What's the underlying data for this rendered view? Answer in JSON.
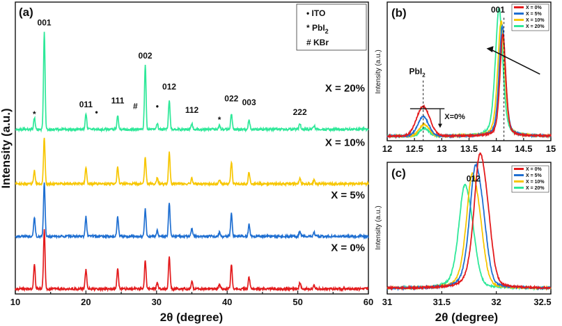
{
  "colors": {
    "x0": "#e31a1c",
    "x5": "#1f6fd1",
    "x10": "#f7c600",
    "x20": "#2ee899"
  },
  "chart_data": [
    {
      "panel": "(a)",
      "type": "line",
      "xlabel": "2θ (degree)",
      "ylabel": "Intensity (a.u.)",
      "xlim": [
        10,
        60
      ],
      "xticks": [
        "10",
        "20",
        "30",
        "40",
        "50",
        "60"
      ],
      "series": [
        {
          "name": "X = 20%",
          "key": "x20",
          "offset": 0.84
        },
        {
          "name": "X = 10%",
          "key": "x10",
          "offset": 0.56
        },
        {
          "name": "X = 5%",
          "key": "x5",
          "offset": 0.29
        },
        {
          "name": "X = 0%",
          "key": "x0",
          "offset": 0.02
        }
      ],
      "peaks": [
        {
          "pos": 12.7,
          "h": [
            0.06,
            0.07,
            0.1,
            0.13
          ]
        },
        {
          "pos": 14.1,
          "h": [
            0.5,
            0.24,
            0.28,
            0.31
          ]
        },
        {
          "pos": 20.0,
          "h": [
            0.08,
            0.08,
            0.1,
            0.1
          ]
        },
        {
          "pos": 24.5,
          "h": [
            0.07,
            0.09,
            0.1,
            0.11
          ]
        },
        {
          "pos": 28.4,
          "h": [
            0.33,
            0.14,
            0.14,
            0.15
          ]
        },
        {
          "pos": 30.1,
          "h": [
            0.03,
            0.03,
            0.03,
            0.03
          ]
        },
        {
          "pos": 31.8,
          "h": [
            0.15,
            0.16,
            0.17,
            0.17
          ]
        },
        {
          "pos": 35.0,
          "h": [
            0.03,
            0.03,
            0.04,
            0.04
          ]
        },
        {
          "pos": 38.9,
          "h": [
            0.02,
            0.02,
            0.02,
            0.02
          ]
        },
        {
          "pos": 40.6,
          "h": [
            0.08,
            0.11,
            0.12,
            0.13
          ]
        },
        {
          "pos": 43.1,
          "h": [
            0.05,
            0.06,
            0.06,
            0.06
          ]
        },
        {
          "pos": 50.3,
          "h": [
            0.03,
            0.03,
            0.03,
            0.03
          ]
        },
        {
          "pos": 52.3,
          "h": [
            0.02,
            0.02,
            0.02,
            0.02
          ]
        }
      ],
      "annotations": [
        {
          "text": "001",
          "x": 14.1,
          "y": 1.38
        },
        {
          "text": "011",
          "x": 20.0,
          "y": 0.96
        },
        {
          "text": "111",
          "x": 24.5,
          "y": 0.98
        },
        {
          "text": "002",
          "x": 28.4,
          "y": 1.21
        },
        {
          "text": "012",
          "x": 31.8,
          "y": 1.05
        },
        {
          "text": "112",
          "x": 35.0,
          "y": 0.93
        },
        {
          "text": "022",
          "x": 40.6,
          "y": 0.99
        },
        {
          "text": "003",
          "x": 43.1,
          "y": 0.97
        },
        {
          "text": "222",
          "x": 50.3,
          "y": 0.92
        },
        {
          "text": "*",
          "x": 12.7,
          "y": 0.91
        },
        {
          "text": "•",
          "x": 21.5,
          "y": 0.92
        },
        {
          "text": "#",
          "x": 27.0,
          "y": 0.95
        },
        {
          "text": "•",
          "x": 30.1,
          "y": 0.95
        },
        {
          "text": "*",
          "x": 38.9,
          "y": 0.88
        }
      ],
      "legend": [
        "• ITO",
        "* PbI",
        "# KBr"
      ],
      "legend_sub": "2",
      "ylim": [
        0,
        1.5
      ]
    },
    {
      "panel": "(b)",
      "type": "line",
      "xlabel": "",
      "ylabel": "Intensity (a.u.)",
      "xlim": [
        12,
        15
      ],
      "xticks": [
        "12",
        "12.5",
        "13",
        "13.5",
        "14",
        "14.5",
        "15"
      ],
      "ylim": [
        0,
        1.05
      ],
      "legend": [
        "X = 0%",
        "X = 5%",
        "X = 10%",
        "X = 20%"
      ],
      "series": [
        {
          "name": "X = 0%",
          "key": "x0",
          "small": {
            "pos": 12.66,
            "h": 0.23,
            "w": 0.12
          },
          "main": {
            "pos": 14.12,
            "h": 0.8,
            "w": 0.055
          }
        },
        {
          "name": "X = 5%",
          "key": "x5",
          "small": {
            "pos": 12.66,
            "h": 0.15,
            "w": 0.1
          },
          "main": {
            "pos": 14.11,
            "h": 0.86,
            "w": 0.06
          }
        },
        {
          "name": "X = 10%",
          "key": "x10",
          "small": {
            "pos": 12.68,
            "h": 0.09,
            "w": 0.09
          },
          "main": {
            "pos": 14.09,
            "h": 0.9,
            "w": 0.065
          }
        },
        {
          "name": "X = 20%",
          "key": "x20",
          "small": {
            "pos": 12.68,
            "h": 0.06,
            "w": 0.08
          },
          "main": {
            "pos": 14.05,
            "h": 1.0,
            "w": 0.07
          }
        }
      ],
      "annotations": [
        {
          "text": "001",
          "x": 14.03,
          "y": 1.0
        },
        {
          "text": "PbI",
          "sub": "2",
          "x": 12.55,
          "y": 0.52
        },
        {
          "text": "X=0%",
          "x": 13.05,
          "y": 0.17
        }
      ]
    },
    {
      "panel": "(c)",
      "type": "line",
      "xlabel": "2θ (degree)",
      "ylabel": "Intensity (a.u.)",
      "xlim": [
        31,
        32.5
      ],
      "xticks": [
        "31",
        "31.5",
        "32",
        "32.5"
      ],
      "ylim": [
        0,
        1.1
      ],
      "legend": [
        "X = 0%",
        "X = 5%",
        "X = 10%",
        "X = 20%"
      ],
      "series": [
        {
          "name": "X = 0%",
          "key": "x0",
          "pos": 31.84,
          "h": 0.94
        },
        {
          "name": "X = 5%",
          "key": "x5",
          "pos": 31.8,
          "h": 0.86
        },
        {
          "name": "X = 10%",
          "key": "x10",
          "pos": 31.77,
          "h": 0.8
        },
        {
          "name": "X = 20%",
          "key": "x20",
          "pos": 31.7,
          "h": 0.72
        }
      ],
      "annotations": [
        {
          "text": "012",
          "x": 31.79,
          "y": 0.94
        }
      ]
    }
  ]
}
